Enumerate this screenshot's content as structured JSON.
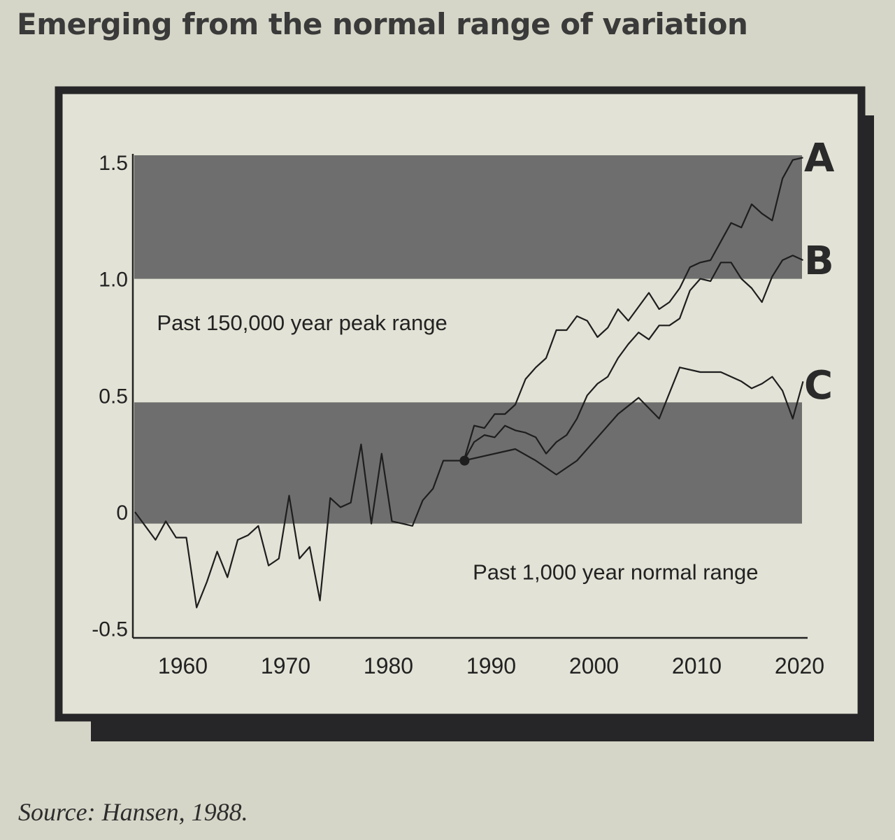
{
  "figure": {
    "title": "Emerging from the normal range of variation",
    "source": "Source: Hansen, 1988."
  },
  "colors": {
    "background": "#d6d6c8",
    "frame_fill": "#e2e2d6",
    "frame_border": "#262629",
    "shadow": "#262629",
    "band": "#6e6e6e",
    "line": "#1e1e1e"
  },
  "chart_data": {
    "type": "line",
    "title": "",
    "xlabel": "",
    "ylabel": "",
    "xlim": [
      1955,
      2021
    ],
    "ylim": [
      -0.55,
      1.55
    ],
    "x_ticks": [
      {
        "value": 1960,
        "label": "1960"
      },
      {
        "value": 1970,
        "label": "1970"
      },
      {
        "value": 1980,
        "label": "1980"
      },
      {
        "value": 1990,
        "label": "1990"
      },
      {
        "value": 2000,
        "label": "2000"
      },
      {
        "value": 2010,
        "label": "2010"
      },
      {
        "value": 2020,
        "label": "2020"
      }
    ],
    "y_ticks": [
      {
        "value": 1.5,
        "label": "1.5"
      },
      {
        "value": 1.0,
        "label": "1.0"
      },
      {
        "value": 0.5,
        "label": "0.5"
      },
      {
        "value": 0,
        "label": "0"
      },
      {
        "value": -0.5,
        "label": "-0.5"
      }
    ],
    "bands": [
      {
        "y0": 1.0,
        "y1": 1.53,
        "label": ""
      },
      {
        "y0": -0.05,
        "y1": 0.47,
        "label": ""
      }
    ],
    "annotations": [
      {
        "text": "Past 150,000 year peak range",
        "x": 1957,
        "y": 0.78
      },
      {
        "text": "Past 1,000 year normal range",
        "x": 1988,
        "y": -0.29
      }
    ],
    "observed": {
      "x": [
        1955,
        1957,
        1958,
        1959,
        1960,
        1961,
        1962,
        1963,
        1964,
        1965,
        1966,
        1967,
        1968,
        1969,
        1970,
        1971,
        1972,
        1973,
        1974,
        1975,
        1976,
        1977,
        1978,
        1979,
        1980,
        1981,
        1982,
        1983,
        1984,
        1985,
        1986,
        1987
      ],
      "y": [
        0.0,
        -0.12,
        -0.04,
        -0.11,
        -0.11,
        -0.41,
        -0.3,
        -0.17,
        -0.28,
        -0.12,
        -0.1,
        -0.06,
        -0.23,
        -0.2,
        0.07,
        -0.2,
        -0.15,
        -0.38,
        0.06,
        0.02,
        0.04,
        0.29,
        -0.05,
        0.25,
        -0.04,
        -0.05,
        -0.06,
        0.05,
        0.1,
        0.22,
        0.22,
        0.22
      ]
    },
    "series": [
      {
        "name": "A",
        "x": [
          1987,
          1988,
          1989,
          1990,
          1991,
          1992,
          1993,
          1994,
          1995,
          1996,
          1997,
          1998,
          1999,
          2000,
          2001,
          2002,
          2003,
          2004,
          2005,
          2006,
          2007,
          2008,
          2009,
          2010,
          2011,
          2012,
          2013,
          2014,
          2015,
          2016,
          2017,
          2018,
          2019,
          2020
        ],
        "y": [
          0.22,
          0.37,
          0.36,
          0.42,
          0.42,
          0.46,
          0.57,
          0.62,
          0.66,
          0.78,
          0.78,
          0.84,
          0.82,
          0.75,
          0.79,
          0.87,
          0.82,
          0.88,
          0.94,
          0.87,
          0.9,
          0.96,
          1.05,
          1.07,
          1.08,
          1.16,
          1.24,
          1.22,
          1.32,
          1.28,
          1.25,
          1.43,
          1.51,
          1.52
        ]
      },
      {
        "name": "B",
        "x": [
          1987,
          1988,
          1989,
          1990,
          1991,
          1992,
          1993,
          1994,
          1995,
          1996,
          1997,
          1998,
          1999,
          2000,
          2001,
          2002,
          2003,
          2004,
          2005,
          2006,
          2007,
          2008,
          2009,
          2010,
          2011,
          2012,
          2013,
          2014,
          2015,
          2016,
          2017,
          2018,
          2019,
          2020
        ],
        "y": [
          0.22,
          0.3,
          0.33,
          0.32,
          0.37,
          0.35,
          0.34,
          0.32,
          0.25,
          0.3,
          0.33,
          0.4,
          0.5,
          0.55,
          0.58,
          0.66,
          0.72,
          0.77,
          0.74,
          0.8,
          0.8,
          0.83,
          0.95,
          1.0,
          0.99,
          1.07,
          1.07,
          1.0,
          0.96,
          0.9,
          1.01,
          1.08,
          1.1,
          1.08
        ]
      },
      {
        "name": "C",
        "x": [
          1987,
          1992,
          1994,
          1996,
          1998,
          2000,
          2002,
          2004,
          2006,
          2008,
          2010,
          2012,
          2014,
          2015,
          2016,
          2017,
          2018,
          2019,
          2020
        ],
        "y": [
          0.22,
          0.27,
          0.22,
          0.16,
          0.22,
          0.32,
          0.42,
          0.49,
          0.4,
          0.62,
          0.6,
          0.6,
          0.56,
          0.53,
          0.55,
          0.58,
          0.52,
          0.4,
          0.56
        ]
      }
    ],
    "branch_point": {
      "x": 1987,
      "y": 0.22
    },
    "series_labels": [
      "A",
      "B",
      "C"
    ]
  }
}
